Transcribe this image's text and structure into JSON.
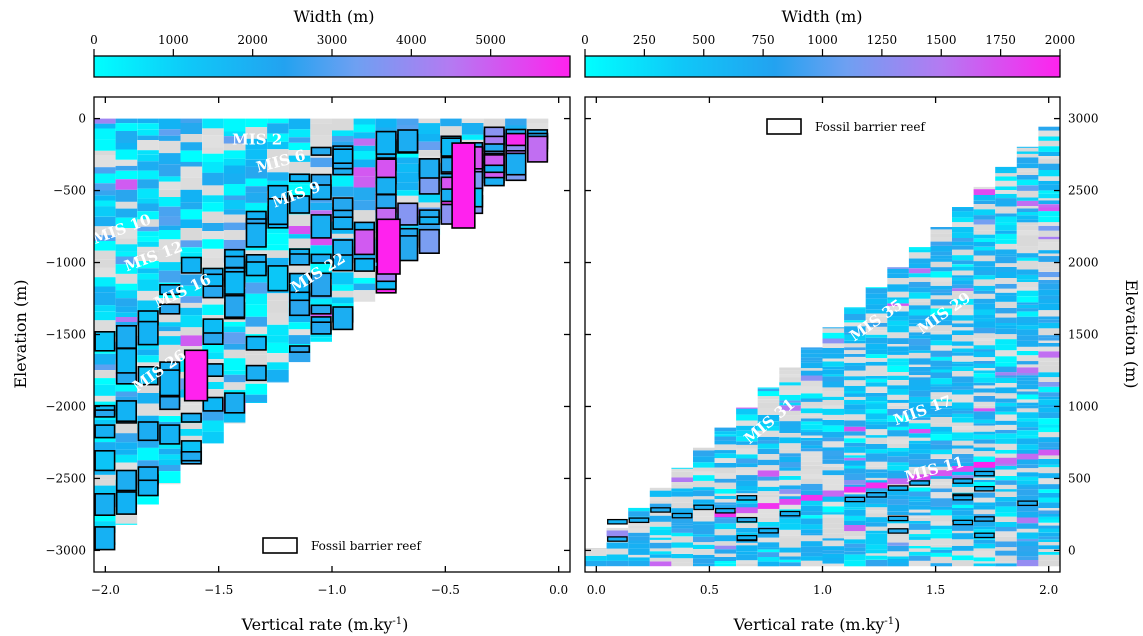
{
  "chart_data": [
    {
      "panel": "left",
      "type": "heatmap",
      "colorbar": {
        "title": "Width (m)",
        "range": [
          0,
          6000
        ],
        "ticks": [
          0,
          1000,
          2000,
          3000,
          4000,
          5000
        ],
        "colors": [
          "#00ffff",
          "#0fb4f5",
          "#2aa6ee",
          "#7b9ef2",
          "#c16ef2",
          "#ff22ee"
        ]
      },
      "xlabel": "Vertical rate (m.ky",
      "xlabel_sup": "-1",
      "xlabel_close": ")",
      "ylabel": "Elevation (m)",
      "xlim": [
        -2.05,
        0.05
      ],
      "ylim": [
        -3150,
        150
      ],
      "xticks": [
        -2.0,
        -1.5,
        -1.0,
        -0.5,
        0.0
      ],
      "xtick_labels": [
        "−2.0",
        "−1.5",
        "−1.0",
        "−0.5",
        "0.0"
      ],
      "yticks": [
        0,
        -500,
        -1000,
        -1500,
        -2000,
        -2500,
        -3000
      ],
      "ytick_labels": [
        "0",
        "−500",
        "−1000",
        "−1500",
        "−2000",
        "−2500",
        "−3000"
      ],
      "legend": {
        "label": "Fossil barrier reef",
        "position": "bottom-center"
      },
      "annotations": [
        {
          "text": "MIS 2",
          "x": -1.33,
          "y": -180,
          "rotation": 0
        },
        {
          "text": "MIS 6",
          "x": -1.22,
          "y": -330,
          "rotation": -15
        },
        {
          "text": "MIS 9",
          "x": -1.15,
          "y": -560,
          "rotation": -20
        },
        {
          "text": "MIS 10",
          "x": -1.92,
          "y": -800,
          "rotation": -20
        },
        {
          "text": "MIS 12",
          "x": -1.78,
          "y": -990,
          "rotation": -20
        },
        {
          "text": "MIS 16",
          "x": -1.65,
          "y": -1230,
          "rotation": -25
        },
        {
          "text": "MIS 22",
          "x": -1.05,
          "y": -1100,
          "rotation": -32
        },
        {
          "text": "MIS 26",
          "x": -1.75,
          "y": -1780,
          "rotation": -35
        }
      ],
      "barrier_reef_count": 160,
      "max_width_m": 5800
    },
    {
      "panel": "right",
      "type": "heatmap",
      "colorbar": {
        "title": "Width (m)",
        "range": [
          0,
          2000
        ],
        "ticks": [
          0,
          250,
          500,
          750,
          1000,
          1250,
          1500,
          1750,
          2000
        ],
        "colors": [
          "#00ffff",
          "#0fb4f5",
          "#2aa6ee",
          "#7b9ef2",
          "#c16ef2",
          "#ff22ee"
        ]
      },
      "xlabel": "Vertical rate (m.ky",
      "xlabel_sup": "-1",
      "xlabel_close": ")",
      "ylabel": "Elevation (m)",
      "xlim": [
        -0.05,
        2.05
      ],
      "ylim": [
        -150,
        3150
      ],
      "xticks": [
        0.0,
        0.5,
        1.0,
        1.5,
        2.0
      ],
      "xtick_labels": [
        "0.0",
        "0.5",
        "1.0",
        "1.5",
        "2.0"
      ],
      "yticks": [
        0,
        500,
        1000,
        1500,
        2000,
        2500,
        3000
      ],
      "ytick_labels": [
        "0",
        "500",
        "1000",
        "1500",
        "2000",
        "2500",
        "3000"
      ],
      "legend": {
        "label": "Fossil barrier reef",
        "position": "top-center"
      },
      "annotations": [
        {
          "text": "MIS 31",
          "x": 0.78,
          "y": 870,
          "rotation": -40
        },
        {
          "text": "MIS 35",
          "x": 1.25,
          "y": 1570,
          "rotation": -35
        },
        {
          "text": "MIS 29",
          "x": 1.55,
          "y": 1620,
          "rotation": -35
        },
        {
          "text": "MIS 17",
          "x": 1.45,
          "y": 940,
          "rotation": -20
        },
        {
          "text": "MIS 11",
          "x": 1.5,
          "y": 530,
          "rotation": -15
        }
      ],
      "barrier_reef_count": 28,
      "max_width_m": 2000
    }
  ]
}
